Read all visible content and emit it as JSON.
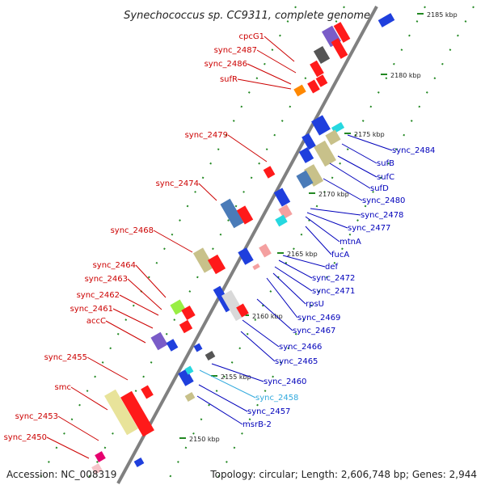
{
  "title": "Synechococcus sp. CC9311, complete genome",
  "footer": {
    "accession": "Accession: NC_008319",
    "topology": "Topology: circular; Length: 2,606,748 bp; Genes: 2,944"
  },
  "colors": {
    "label_left": "#cc0000",
    "label_right": "#0000bb",
    "label_highlight": "#33aadd",
    "backbone": "#808080",
    "tick_dash": "#228822"
  },
  "ticks": [
    "2185 kbp",
    "2180 kbp",
    "2175 kbp",
    "2170 kbp",
    "2165 kbp",
    "2160 kbp",
    "2155 kbp",
    "2150 kbp"
  ],
  "labels_left": [
    "cpcG1",
    "sync_2487",
    "sync_2486",
    "sufR",
    "sync_2479",
    "sync_2474",
    "sync_2468",
    "sync_2464",
    "sync_2463",
    "sync_2462",
    "sync_2461",
    "accC",
    "sync_2455",
    "smc",
    "sync_2453",
    "sync_2450"
  ],
  "labels_right": [
    "sync_2484",
    "sufB",
    "sufC",
    "sufD",
    "sync_2480",
    "sync_2478",
    "sync_2477",
    "mtnA",
    "fucA",
    "def",
    "sync_2472",
    "sync_2471",
    "rpsU",
    "sync_2469",
    "sync_2467",
    "sync_2466",
    "sync_2465",
    "sync_2460",
    "sync_2458",
    "sync_2457",
    "msrB-2"
  ]
}
